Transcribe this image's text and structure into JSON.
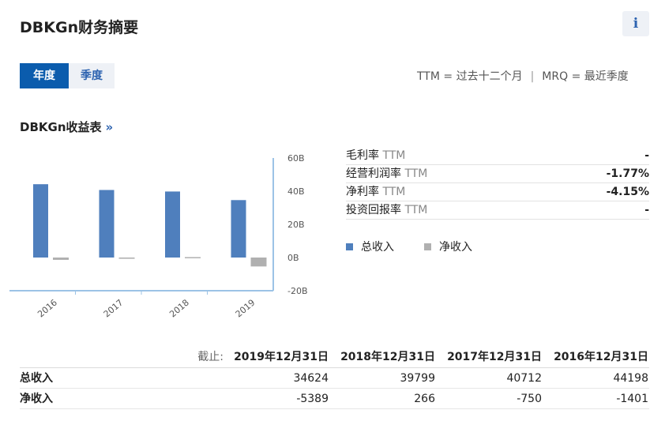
{
  "header": {
    "title": "DBKGn财务摘要",
    "info_icon": "i"
  },
  "period_toggle": {
    "annual_label": "年度",
    "quarterly_label": "季度",
    "selected": "annual"
  },
  "legend_top": {
    "ttm": "TTM = 过去十二个月",
    "mrq": "MRQ = 最近季度"
  },
  "income_section": {
    "title": "DBKGn收益表",
    "chevron": "»"
  },
  "metrics": [
    {
      "label": "毛利率",
      "suffix": "TTM",
      "value": "-"
    },
    {
      "label": "经营利润率",
      "suffix": "TTM",
      "value": "-1.77%"
    },
    {
      "label": "净利率",
      "suffix": "TTM",
      "value": "-4.15%"
    },
    {
      "label": "投资回报率",
      "suffix": "TTM",
      "value": "-"
    }
  ],
  "colors": {
    "revenue": "#4f7fbd",
    "net_income": "#b0b0b0",
    "accent": "#0b5cad"
  },
  "chart_data": {
    "type": "bar",
    "categories": [
      "2016",
      "2017",
      "2018",
      "2019"
    ],
    "series": [
      {
        "name": "总收入",
        "values": [
          44198,
          40712,
          39799,
          34624
        ]
      },
      {
        "name": "净收入",
        "values": [
          -1401,
          -750,
          266,
          -5389
        ]
      }
    ],
    "y_ticks": [
      "60B",
      "40B",
      "20B",
      "0B",
      "-20B"
    ],
    "ylim": [
      -20000,
      60000
    ],
    "legend_position": "below-right"
  },
  "table": {
    "as_of_label": "截止:",
    "columns": [
      "2019年12月31日",
      "2018年12月31日",
      "2017年12月31日",
      "2016年12月31日"
    ],
    "rows": [
      {
        "label": "总收入",
        "values": [
          "34624",
          "39799",
          "40712",
          "44198"
        ]
      },
      {
        "label": "净收入",
        "values": [
          "-5389",
          "266",
          "-750",
          "-1401"
        ]
      }
    ]
  }
}
